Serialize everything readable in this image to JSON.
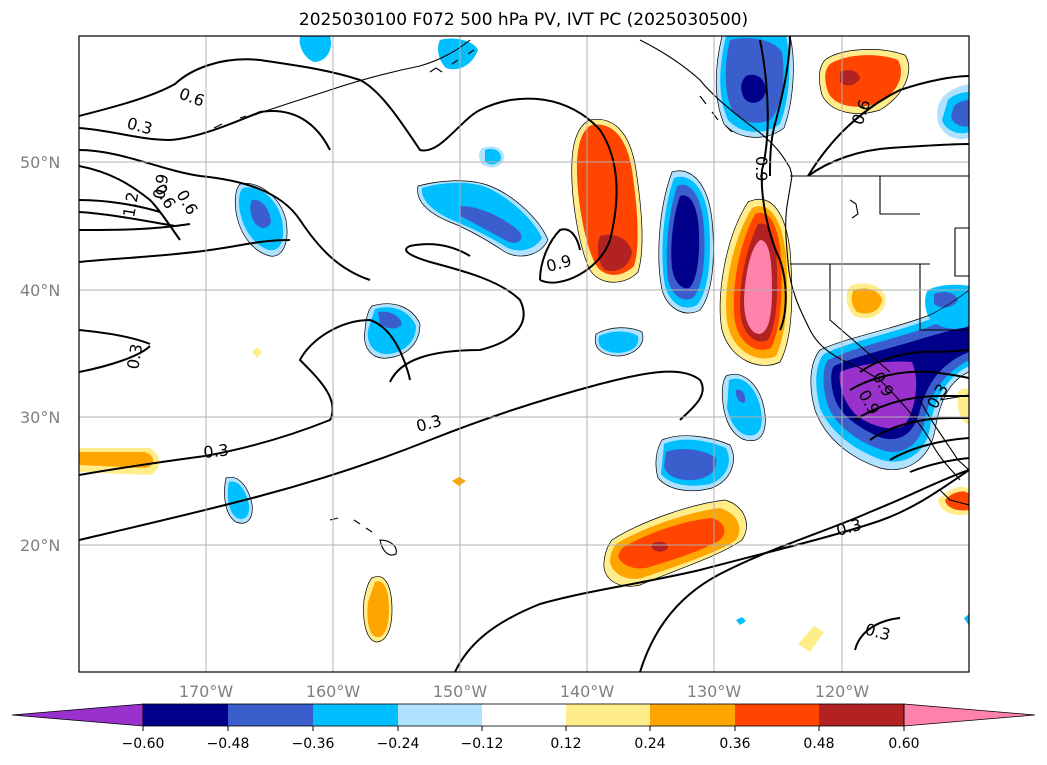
{
  "title": "2025030100 F072 500 hPa PV, IVT PC (2025030500)",
  "lat_labels": [
    "50°N",
    "40°N",
    "30°N",
    "20°N"
  ],
  "lon_labels": [
    "170°W",
    "160°W",
    "150°W",
    "140°W",
    "130°W",
    "120°W"
  ],
  "contour_labels": [
    "0.6",
    "0.3",
    "0.9",
    "0.6",
    "1.2",
    "0.6",
    "0.9",
    "0.3",
    "0.3",
    "0.3",
    "0.9",
    "0.6",
    "0.9",
    "0.9",
    "0.3",
    "0.3",
    "0.3"
  ],
  "colorbar": {
    "tick_labels": [
      "−0.60",
      "−0.48",
      "−0.36",
      "−0.24",
      "−0.12",
      "0.12",
      "0.24",
      "0.36",
      "0.48",
      "0.60"
    ],
    "colors": [
      "#9932cc",
      "#00008b",
      "#3a5fcd",
      "#00bfff",
      "#b0e2ff",
      "#ffffff",
      "#ffec8b",
      "#ffa500",
      "#ff4500",
      "#b22222",
      "#ff82ab"
    ]
  }
}
